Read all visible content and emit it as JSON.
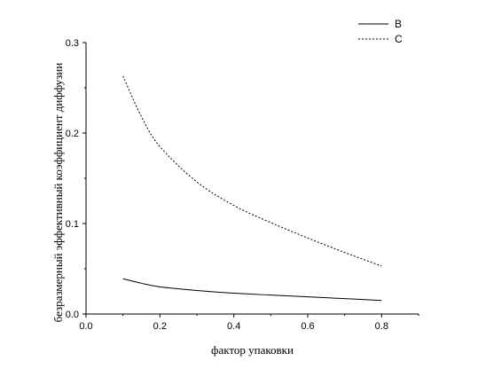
{
  "chart_data": {
    "type": "line",
    "xlabel": "фактор упаковки",
    "ylabel": "безразмерный эффективный коэффициент диффузии",
    "xlim": [
      0.0,
      0.9
    ],
    "ylim": [
      0.0,
      0.3
    ],
    "xticks": [
      0.0,
      0.2,
      0.4,
      0.6,
      0.8
    ],
    "yticks": [
      0.0,
      0.1,
      0.2,
      0.3
    ],
    "xtick_labels": [
      "0.0",
      "0.2",
      "0.4",
      "0.6",
      "0.8"
    ],
    "ytick_labels": [
      "0.0",
      "0.1",
      "0.2",
      "0.3"
    ],
    "grid": false,
    "legend_position": "top-right",
    "series": [
      {
        "name": "B",
        "style": "solid",
        "color": "#000000",
        "x": [
          0.1,
          0.15,
          0.2,
          0.3,
          0.4,
          0.5,
          0.6,
          0.7,
          0.8
        ],
        "y": [
          0.039,
          0.034,
          0.03,
          0.026,
          0.023,
          0.021,
          0.019,
          0.017,
          0.015
        ]
      },
      {
        "name": "C",
        "style": "dashed",
        "color": "#000000",
        "x": [
          0.1,
          0.15,
          0.2,
          0.3,
          0.4,
          0.5,
          0.6,
          0.7,
          0.8
        ],
        "y": [
          0.263,
          0.218,
          0.185,
          0.146,
          0.12,
          0.101,
          0.084,
          0.068,
          0.053
        ]
      }
    ]
  }
}
